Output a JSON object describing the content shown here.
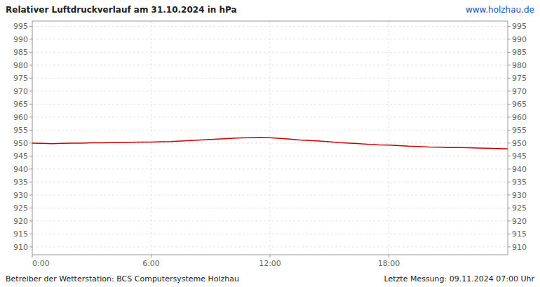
{
  "chart_data": {
    "type": "line",
    "title": "Relativer Luftdruckverlauf am 31.10.2024 in hPa",
    "annotations": [
      "www.holzhau.de",
      "Betreiber der Wetterstation: BCS Computersysteme Holzhau",
      "Letzte Messung: 09.11.2024 07:00 Uhr"
    ],
    "x": [
      0,
      30,
      60,
      90,
      120,
      150,
      180,
      210,
      240,
      270,
      300,
      330,
      360,
      390,
      420,
      450,
      480,
      510,
      540,
      570,
      600,
      630,
      660,
      690,
      720,
      750,
      780,
      810,
      840,
      870,
      900,
      930,
      960,
      990,
      1020,
      1050,
      1080,
      1110,
      1140,
      1170,
      1200,
      1230,
      1260,
      1290,
      1320,
      1350,
      1380,
      1410,
      1440
    ],
    "values": [
      950.0,
      949.9,
      949.8,
      949.9,
      950.0,
      950.0,
      950.1,
      950.1,
      950.2,
      950.2,
      950.3,
      950.4,
      950.4,
      950.5,
      950.6,
      950.8,
      951.0,
      951.2,
      951.4,
      951.6,
      951.8,
      952.0,
      952.1,
      952.2,
      952.1,
      951.8,
      951.5,
      951.2,
      951.0,
      950.8,
      950.5,
      950.2,
      950.0,
      949.8,
      949.5,
      949.3,
      949.2,
      949.0,
      948.8,
      948.7,
      948.5,
      948.4,
      948.3,
      948.3,
      948.2,
      948.1,
      948.0,
      947.9,
      947.8
    ],
    "color": "#cc0000",
    "xlim": [
      0,
      1440
    ],
    "xticks": [
      {
        "value": 0,
        "label": "0:00"
      },
      {
        "value": 360,
        "label": "6:00"
      },
      {
        "value": 720,
        "label": "12:00"
      },
      {
        "value": 1080,
        "label": "18:00"
      }
    ],
    "ylim": [
      907,
      997
    ],
    "yticks": [
      910,
      915,
      920,
      925,
      930,
      935,
      940,
      945,
      950,
      955,
      960,
      965,
      970,
      975,
      980,
      985,
      990,
      995
    ],
    "grid": true
  }
}
